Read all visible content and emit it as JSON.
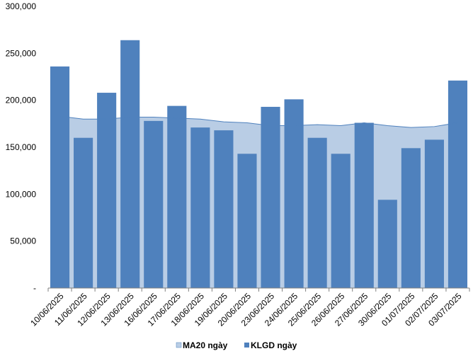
{
  "chart_data": {
    "type": "bar",
    "categories": [
      "10/06/2025",
      "11/06/2025",
      "12/06/2025",
      "13/06/2025",
      "16/06/2025",
      "17/06/2025",
      "18/06/2025",
      "19/06/2025",
      "20/06/2025",
      "23/06/2025",
      "24/06/2025",
      "25/06/2025",
      "26/06/2025",
      "27/06/2025",
      "30/06/2025",
      "01/07/2025",
      "02/07/2025",
      "03/07/2025"
    ],
    "series": [
      {
        "name": "KLGD ngày",
        "type": "bar",
        "color": "#4f81bd",
        "values": [
          236000,
          160000,
          208000,
          264000,
          178000,
          194000,
          171000,
          168000,
          143000,
          193000,
          201000,
          160000,
          143000,
          176000,
          94000,
          149000,
          158000,
          221000
        ]
      },
      {
        "name": "MA20 ngày",
        "type": "area",
        "color": "#b9cde5",
        "line_color": "#4f81bd",
        "values": [
          183000,
          180000,
          180000,
          182000,
          182000,
          181000,
          180000,
          177000,
          176000,
          173000,
          173000,
          174000,
          173000,
          176000,
          173000,
          171000,
          172000,
          176000
        ]
      }
    ],
    "y_ticks": [
      "-",
      "50,000",
      "100,000",
      "150,000",
      "200,000",
      "250,000",
      "300,000"
    ],
    "ylim": [
      0,
      300000
    ],
    "grid": false,
    "legend": "bottom"
  }
}
